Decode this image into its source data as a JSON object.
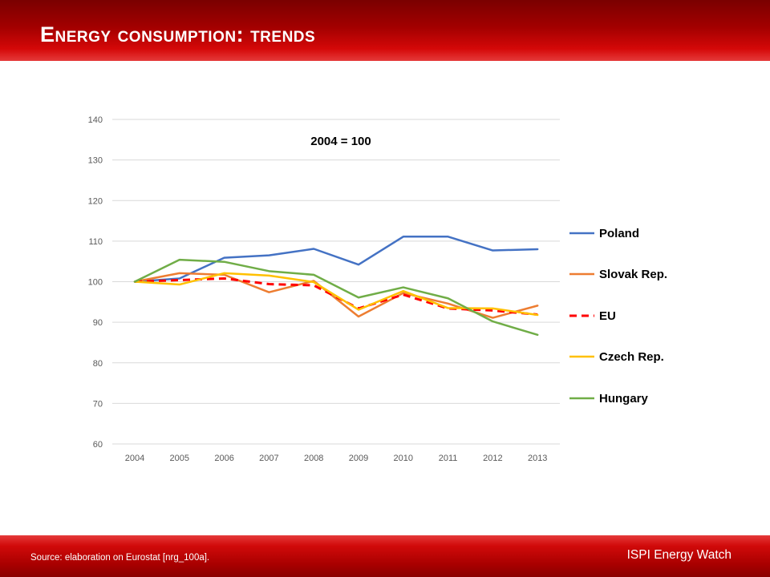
{
  "header": {
    "title": "Energy consumption: trends"
  },
  "footer": {
    "source": "Source: elaboration on Eurostat [nrg_100a].",
    "brand": "ISPI Energy Watch"
  },
  "colors": {
    "header": "#b00000",
    "Poland": "#4472c4",
    "Slovak Rep.": "#ed7d31",
    "EU": "#ff0000",
    "Czech Rep.": "#ffc000",
    "Hungary": "#70ad47"
  },
  "chart_data": {
    "type": "line",
    "annotation": "2004 = 100",
    "xlabel": "",
    "ylabel": "",
    "ylim": [
      60,
      140
    ],
    "yticks": [
      60,
      70,
      80,
      90,
      100,
      110,
      120,
      130,
      140
    ],
    "grid": true,
    "legend_position": "right",
    "categories": [
      "2004",
      "2005",
      "2006",
      "2007",
      "2008",
      "2009",
      "2010",
      "2011",
      "2012",
      "2013"
    ],
    "series": [
      {
        "name": "Poland",
        "style": "solid",
        "values": [
          100,
          100.8,
          105.9,
          106.5,
          108.1,
          104.2,
          111.1,
          111.1,
          107.7,
          108.0
        ]
      },
      {
        "name": "Slovak Rep.",
        "style": "solid",
        "values": [
          100,
          102.1,
          101.7,
          97.4,
          100.2,
          91.4,
          97.2,
          94.6,
          91.1,
          94.1
        ]
      },
      {
        "name": "EU",
        "style": "dashed",
        "values": [
          100,
          100.4,
          100.8,
          99.4,
          99.1,
          93.4,
          96.8,
          93.4,
          92.9,
          91.9
        ]
      },
      {
        "name": "Czech Rep.",
        "style": "solid",
        "values": [
          100,
          99.3,
          102.1,
          101.5,
          99.9,
          93.1,
          97.7,
          93.5,
          93.4,
          91.8
        ]
      },
      {
        "name": "Hungary",
        "style": "solid",
        "values": [
          100,
          105.4,
          104.9,
          102.6,
          101.7,
          96.1,
          98.6,
          95.9,
          90.2,
          86.9
        ]
      }
    ]
  }
}
